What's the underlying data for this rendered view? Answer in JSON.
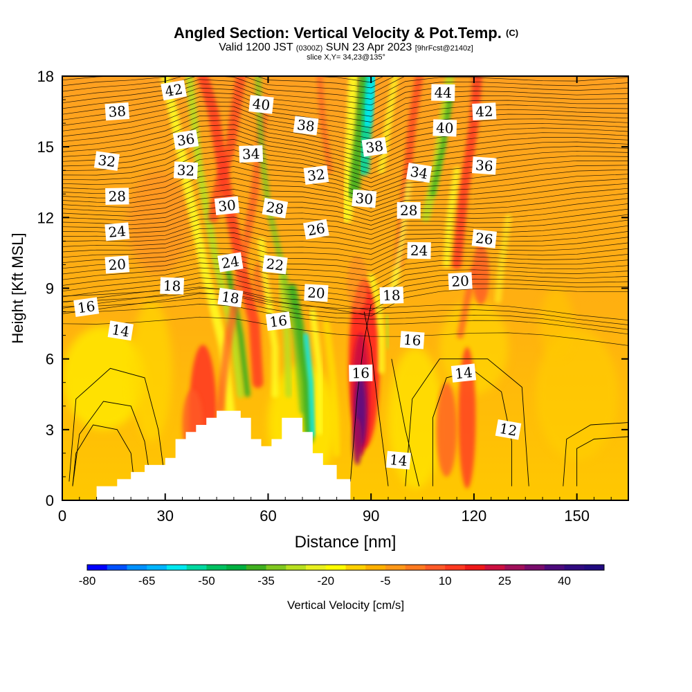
{
  "header": {
    "title": "Angled Section: Vertical Velocity & Pot.Temp.",
    "title_mark": "(C)",
    "valid_prefix": "Valid 1200 JST",
    "valid_utc": "(0300Z)",
    "valid_date": "SUN 23 Apr 2023",
    "forecast_info": "[9hrFcst@2140z]",
    "slice_info": "slice X,Y= 34,23@135°"
  },
  "chart_data": {
    "type": "heatmap",
    "xlabel": "Distance [nm]",
    "ylabel": "Height [Kft MSL]",
    "xlim": [
      0,
      165
    ],
    "ylim": [
      0,
      18
    ],
    "xticks": [
      0,
      30,
      60,
      90,
      120,
      150
    ],
    "yticks": [
      0,
      3,
      6,
      9,
      12,
      15,
      18
    ],
    "colorbar": {
      "label": "Vertical Velocity [cm/s]",
      "tick_labels": [
        "-80",
        "-65",
        "-50",
        "-35",
        "-20",
        "-5",
        "10",
        "25",
        "40"
      ],
      "min": -80,
      "max": 50,
      "step": 5,
      "colors": [
        "#0000ff",
        "#0050ff",
        "#0090ff",
        "#00b4ff",
        "#00e8f0",
        "#00d8a0",
        "#00c060",
        "#00b040",
        "#40b020",
        "#80c820",
        "#b8e020",
        "#e8f020",
        "#ffff00",
        "#ffd000",
        "#ffb000",
        "#ff9818",
        "#ff7a20",
        "#ff5a28",
        "#ff3a20",
        "#ee1818",
        "#cc1040",
        "#a0105a",
        "#780c6c",
        "#4c0a7c",
        "#300a80",
        "#200a80"
      ]
    },
    "series": [
      {
        "name": "updraft core x≈88nm",
        "x": 88,
        "y_range": [
          1.5,
          8.5
        ],
        "max": 45
      },
      {
        "name": "downdraft x≈72nm",
        "x": 72,
        "y_range": [
          2.5,
          8.5
        ],
        "min": -50
      },
      {
        "name": "downdraft x≈89nm aloft",
        "x": 89,
        "y_range": [
          14.5,
          18
        ],
        "min": -50
      }
    ],
    "terrain_kft": [
      [
        0,
        0
      ],
      [
        10,
        0
      ],
      [
        10,
        0.6
      ],
      [
        16,
        0.6
      ],
      [
        16,
        0.9
      ],
      [
        20,
        0.9
      ],
      [
        20,
        1.2
      ],
      [
        24,
        1.2
      ],
      [
        24,
        1.5
      ],
      [
        30,
        1.5
      ],
      [
        30,
        1.8
      ],
      [
        33,
        1.8
      ],
      [
        33,
        2.6
      ],
      [
        36,
        2.6
      ],
      [
        36,
        2.9
      ],
      [
        39,
        2.9
      ],
      [
        39,
        3.2
      ],
      [
        42,
        3.2
      ],
      [
        42,
        3.5
      ],
      [
        45,
        3.5
      ],
      [
        45,
        3.8
      ],
      [
        52,
        3.8
      ],
      [
        52,
        3.5
      ],
      [
        55,
        3.5
      ],
      [
        55,
        2.6
      ],
      [
        58,
        2.6
      ],
      [
        58,
        2.3
      ],
      [
        61,
        2.3
      ],
      [
        61,
        2.6
      ],
      [
        64,
        2.6
      ],
      [
        64,
        3.5
      ],
      [
        70,
        3.5
      ],
      [
        70,
        2.9
      ],
      [
        73,
        2.9
      ],
      [
        73,
        2.0
      ],
      [
        76,
        2.0
      ],
      [
        76,
        1.5
      ],
      [
        80,
        1.5
      ],
      [
        80,
        0.9
      ],
      [
        84,
        0.9
      ],
      [
        84,
        0
      ],
      [
        165,
        0
      ]
    ],
    "theta_contour_labels": [
      {
        "v": "42",
        "x": 32.5,
        "y": 17.4
      },
      {
        "v": "40",
        "x": 58,
        "y": 16.8
      },
      {
        "v": "44",
        "x": 111,
        "y": 17.3
      },
      {
        "v": "38",
        "x": 16,
        "y": 16.5
      },
      {
        "v": "36",
        "x": 36,
        "y": 15.3
      },
      {
        "v": "38",
        "x": 71,
        "y": 15.9
      },
      {
        "v": "40",
        "x": 111.5,
        "y": 15.8
      },
      {
        "v": "42",
        "x": 123,
        "y": 16.5
      },
      {
        "v": "38",
        "x": 91,
        "y": 15.0
      },
      {
        "v": "32",
        "x": 13,
        "y": 14.4
      },
      {
        "v": "32",
        "x": 36,
        "y": 14.0
      },
      {
        "v": "34",
        "x": 55,
        "y": 14.7
      },
      {
        "v": "32",
        "x": 74,
        "y": 13.8
      },
      {
        "v": "34",
        "x": 104,
        "y": 13.9
      },
      {
        "v": "36",
        "x": 123,
        "y": 14.2
      },
      {
        "v": "28",
        "x": 16,
        "y": 12.9
      },
      {
        "v": "30",
        "x": 48,
        "y": 12.5
      },
      {
        "v": "28",
        "x": 62,
        "y": 12.4
      },
      {
        "v": "30",
        "x": 88,
        "y": 12.8
      },
      {
        "v": "28",
        "x": 101,
        "y": 12.3
      },
      {
        "v": "24",
        "x": 16,
        "y": 11.4
      },
      {
        "v": "26",
        "x": 74,
        "y": 11.5
      },
      {
        "v": "26",
        "x": 123,
        "y": 11.1
      },
      {
        "v": "24",
        "x": 104,
        "y": 10.6
      },
      {
        "v": "20",
        "x": 16,
        "y": 10.0
      },
      {
        "v": "24",
        "x": 49,
        "y": 10.1
      },
      {
        "v": "22",
        "x": 62,
        "y": 10.0
      },
      {
        "v": "18",
        "x": 32,
        "y": 9.1
      },
      {
        "v": "20",
        "x": 116,
        "y": 9.3
      },
      {
        "v": "16",
        "x": 7,
        "y": 8.2
      },
      {
        "v": "18",
        "x": 49,
        "y": 8.6
      },
      {
        "v": "20",
        "x": 74,
        "y": 8.8
      },
      {
        "v": "18",
        "x": 96,
        "y": 8.7
      },
      {
        "v": "16",
        "x": 63,
        "y": 7.6
      },
      {
        "v": "14",
        "x": 17,
        "y": 7.2
      },
      {
        "v": "16",
        "x": 102,
        "y": 6.8
      },
      {
        "v": "16",
        "x": 87,
        "y": 5.4
      },
      {
        "v": "14",
        "x": 117,
        "y": 5.4
      },
      {
        "v": "12",
        "x": 130,
        "y": 3.0
      },
      {
        "v": "14",
        "x": 98,
        "y": 1.7
      }
    ]
  }
}
